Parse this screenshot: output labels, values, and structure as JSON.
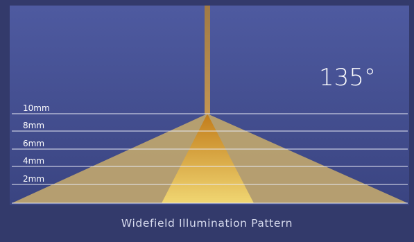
{
  "diagram": {
    "angle_label": "135°",
    "caption": "Widefield Illumination Pattern",
    "distance_lines": [
      "10mm",
      "8mm",
      "6mm",
      "4mm",
      "2mm"
    ],
    "colors": {
      "background": "#333a6b",
      "panel_top": "#4e5aa0",
      "panel_bottom": "#3b4582",
      "fiber": "#b5894a",
      "outer_cone": "#bca36f",
      "inner_cone_top": "#c9861f",
      "inner_cone_bottom": "#ecd06b",
      "line": "#e8eaf5"
    }
  }
}
